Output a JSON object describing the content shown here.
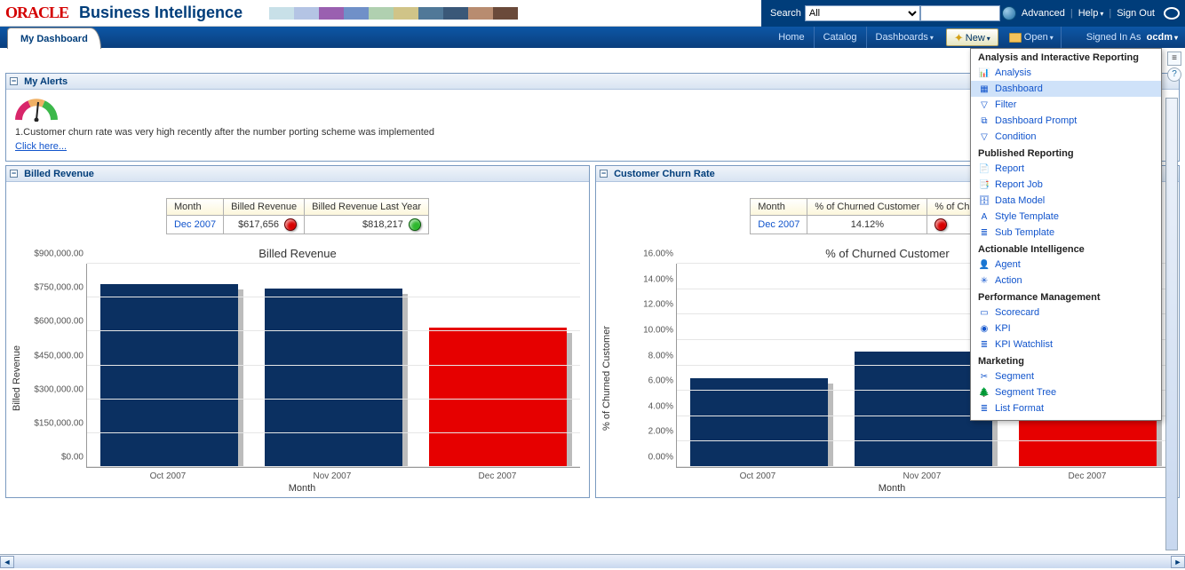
{
  "brand": {
    "logo_text": "ORACLE",
    "title": "Business Intelligence"
  },
  "swatch_colors": [
    "#c8e0e8",
    "#b4c4e4",
    "#9a60b0",
    "#7090c8",
    "#b0d0b0",
    "#d0c488",
    "#507898",
    "#3a5878",
    "#b88c70",
    "#6a4a3a"
  ],
  "top": {
    "search_label": "Search",
    "search_scope": "All",
    "search_value": "",
    "advanced": "Advanced",
    "help": "Help",
    "signout": "Sign Out"
  },
  "tab": "My Dashboard",
  "nav": {
    "home": "Home",
    "catalog": "Catalog",
    "dashboards": "Dashboards",
    "new": "New",
    "open": "Open",
    "signed_in_as": "Signed In As",
    "user": "ocdm"
  },
  "dropdown": {
    "sections": [
      {
        "heading": "Analysis and Interactive Reporting",
        "items": [
          {
            "label": "Analysis",
            "icon": "📊",
            "selected": false
          },
          {
            "label": "Dashboard",
            "icon": "▦",
            "selected": true
          },
          {
            "label": "Filter",
            "icon": "▽",
            "selected": false
          },
          {
            "label": "Dashboard Prompt",
            "icon": "⧉",
            "selected": false
          },
          {
            "label": "Condition",
            "icon": "▽",
            "selected": false
          }
        ]
      },
      {
        "heading": "Published Reporting",
        "items": [
          {
            "label": "Report",
            "icon": "📄"
          },
          {
            "label": "Report Job",
            "icon": "📑"
          },
          {
            "label": "Data Model",
            "icon": "🗄"
          },
          {
            "label": "Style Template",
            "icon": "A"
          },
          {
            "label": "Sub Template",
            "icon": "≣"
          }
        ]
      },
      {
        "heading": "Actionable Intelligence",
        "items": [
          {
            "label": "Agent",
            "icon": "👤"
          },
          {
            "label": "Action",
            "icon": "✳"
          }
        ]
      },
      {
        "heading": "Performance Management",
        "items": [
          {
            "label": "Scorecard",
            "icon": "▭"
          },
          {
            "label": "KPI",
            "icon": "◉"
          },
          {
            "label": "KPI Watchlist",
            "icon": "≣"
          }
        ]
      },
      {
        "heading": "Marketing",
        "items": [
          {
            "label": "Segment",
            "icon": "✂"
          },
          {
            "label": "Segment Tree",
            "icon": "🌲"
          },
          {
            "label": "List Format",
            "icon": "≣"
          }
        ]
      }
    ]
  },
  "alerts": {
    "title": "My Alerts",
    "item_text": "1.Customer churn rate was very high recently after the number porting scheme was implemented",
    "link": "Click here..."
  },
  "billed": {
    "section_title": "Billed Revenue",
    "kpi": {
      "cols": [
        "Month",
        "Billed Revenue",
        "Billed Revenue Last Year"
      ],
      "month": "Dec 2007",
      "value": "$617,656",
      "value_status_color": "#d80000",
      "last_year": "$818,217",
      "last_year_status_color": "#2db82d"
    },
    "chart": {
      "title": "Billed Revenue",
      "type": "bar",
      "ylabel": "Billed Revenue",
      "xaxis_title": "Month",
      "categories": [
        "Oct 2007",
        "Nov 2007",
        "Dec 2007"
      ],
      "values": [
        810000,
        790000,
        617656
      ],
      "bar_colors": [
        "#0b3061",
        "#0b3061",
        "#e60000"
      ],
      "ylim": [
        0,
        900000
      ],
      "ytick_step": 150000,
      "yticks": [
        "$0.00",
        "$150,000.00",
        "$300,000.00",
        "$450,000.00",
        "$600,000.00",
        "$750,000.00",
        "$900,000.00"
      ],
      "grid_color": "#e6e6e6",
      "shadow_color": "#bcbcbc"
    }
  },
  "churn": {
    "section_title": "Customer Churn Rate",
    "kpi": {
      "cols": [
        "Month",
        "% of Churned Customer",
        "% of Churned Year"
      ],
      "month": "Dec 2007",
      "value": "14.12%",
      "value_status_color": "#d80000",
      "last_year": ""
    },
    "chart": {
      "title": "% of Churned Customer",
      "type": "bar",
      "ylabel": "% of Churned Customer",
      "xaxis_title": "Month",
      "categories": [
        "Oct 2007",
        "Nov 2007",
        "Dec 2007"
      ],
      "values": [
        7.0,
        9.1,
        14.12
      ],
      "bar_colors": [
        "#0b3061",
        "#0b3061",
        "#e60000"
      ],
      "ylim": [
        0,
        16
      ],
      "ytick_step": 2,
      "yticks": [
        "0.00%",
        "2.00%",
        "4.00%",
        "6.00%",
        "8.00%",
        "10.00%",
        "12.00%",
        "14.00%",
        "16.00%"
      ],
      "grid_color": "#e6e6e6",
      "shadow_color": "#bcbcbc"
    }
  }
}
